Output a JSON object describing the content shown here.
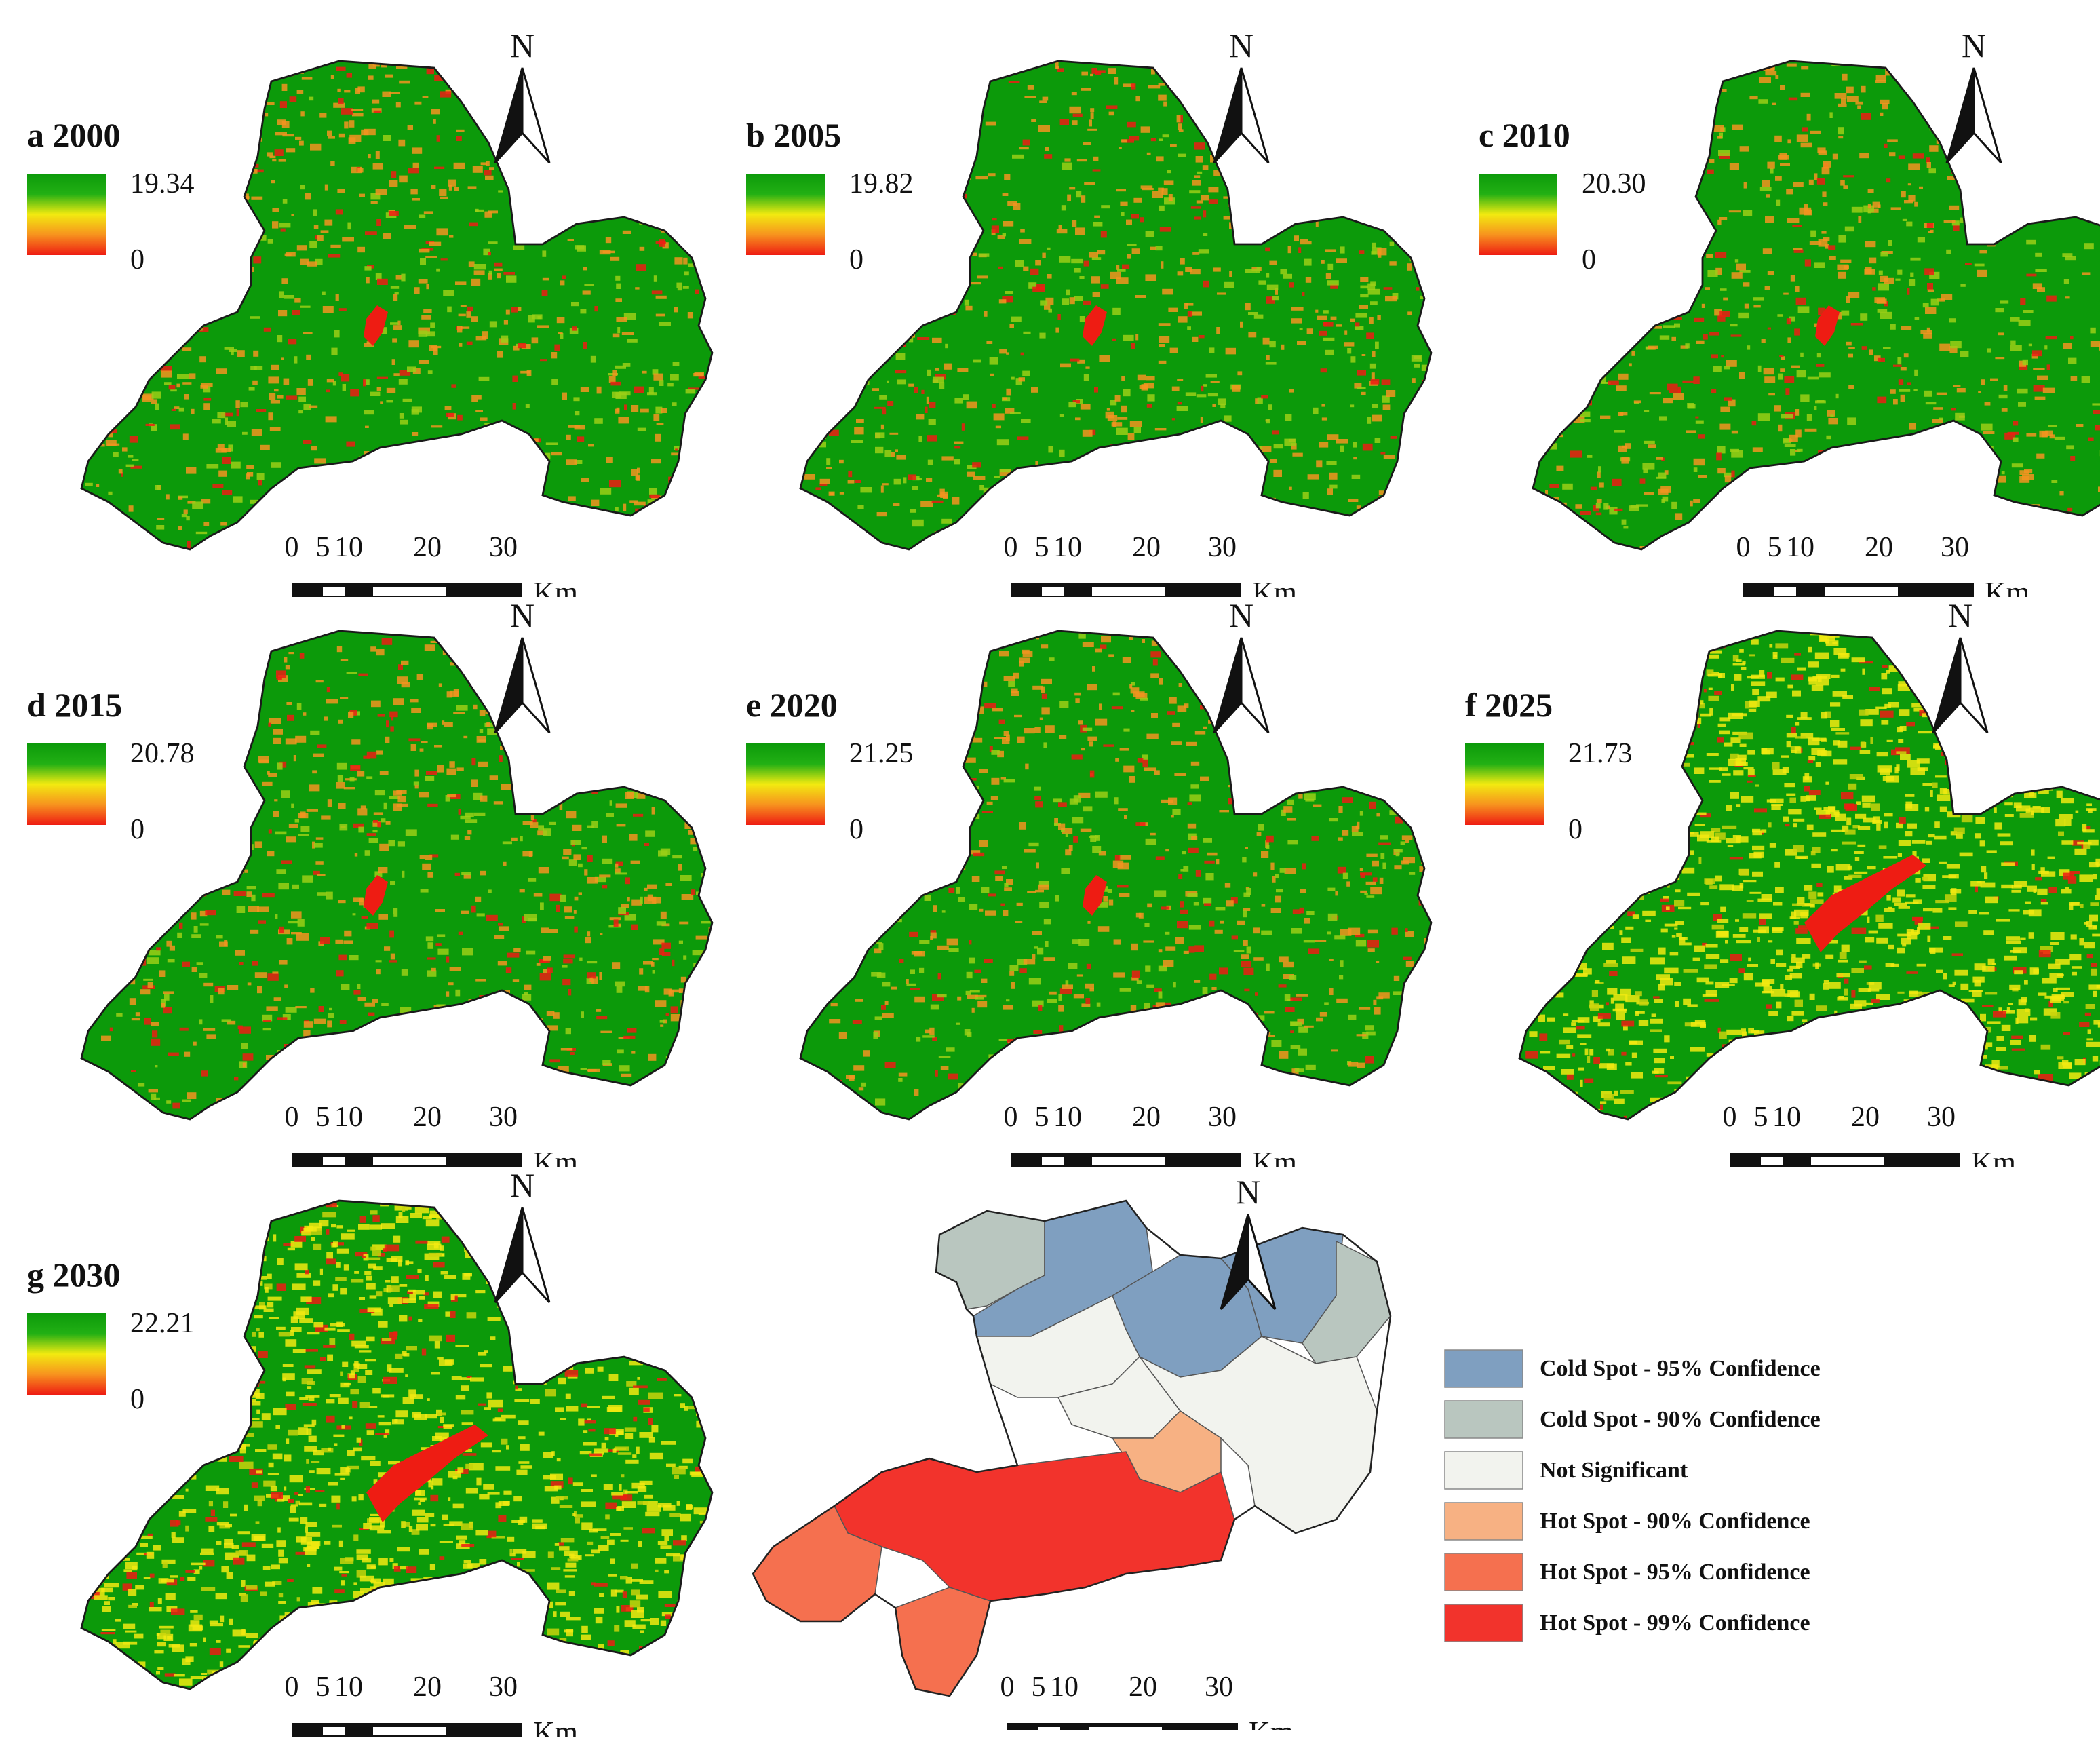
{
  "panels": [
    {
      "id": "a",
      "label": "a 2000",
      "max": "19.34",
      "min": "0",
      "style": "orange"
    },
    {
      "id": "b",
      "label": "b 2005",
      "max": "19.82",
      "min": "0",
      "style": "orange"
    },
    {
      "id": "c",
      "label": "c 2010",
      "max": "20.30",
      "min": "0",
      "style": "orange"
    },
    {
      "id": "d",
      "label": "d 2015",
      "max": "20.78",
      "min": "0",
      "style": "orange"
    },
    {
      "id": "e",
      "label": "e 2020",
      "max": "21.25",
      "min": "0",
      "style": "orange"
    },
    {
      "id": "f",
      "label": "f 2025",
      "max": "21.73",
      "min": "0",
      "style": "yellow"
    },
    {
      "id": "g",
      "label": "g 2030",
      "max": "22.21",
      "min": "0",
      "style": "yellow"
    }
  ],
  "north_label": "N",
  "scalebar": {
    "ticks": [
      "0",
      "5",
      "10",
      "20",
      "30"
    ],
    "unit": "Km"
  },
  "hotspot_legend": [
    {
      "label": "Cold Spot - 95% Confidence",
      "color": "#7f9fc0"
    },
    {
      "label": "Cold Spot - 90% Confidence",
      "color": "#b9c6bf"
    },
    {
      "label": "Not Significant",
      "color": "#f2f3ee"
    },
    {
      "label": "Hot Spot - 90% Confidence",
      "color": "#f7b183"
    },
    {
      "label": "Hot Spot - 95% Confidence",
      "color": "#f5704f"
    },
    {
      "label": "Hot Spot - 99% Confidence",
      "color": "#f2332c"
    }
  ],
  "colors": {
    "green": "#0c9a0a",
    "red": "#ee1c13",
    "orange": "#f39420",
    "yellow": "#f2ea10",
    "outline": "#1a1a1a"
  }
}
